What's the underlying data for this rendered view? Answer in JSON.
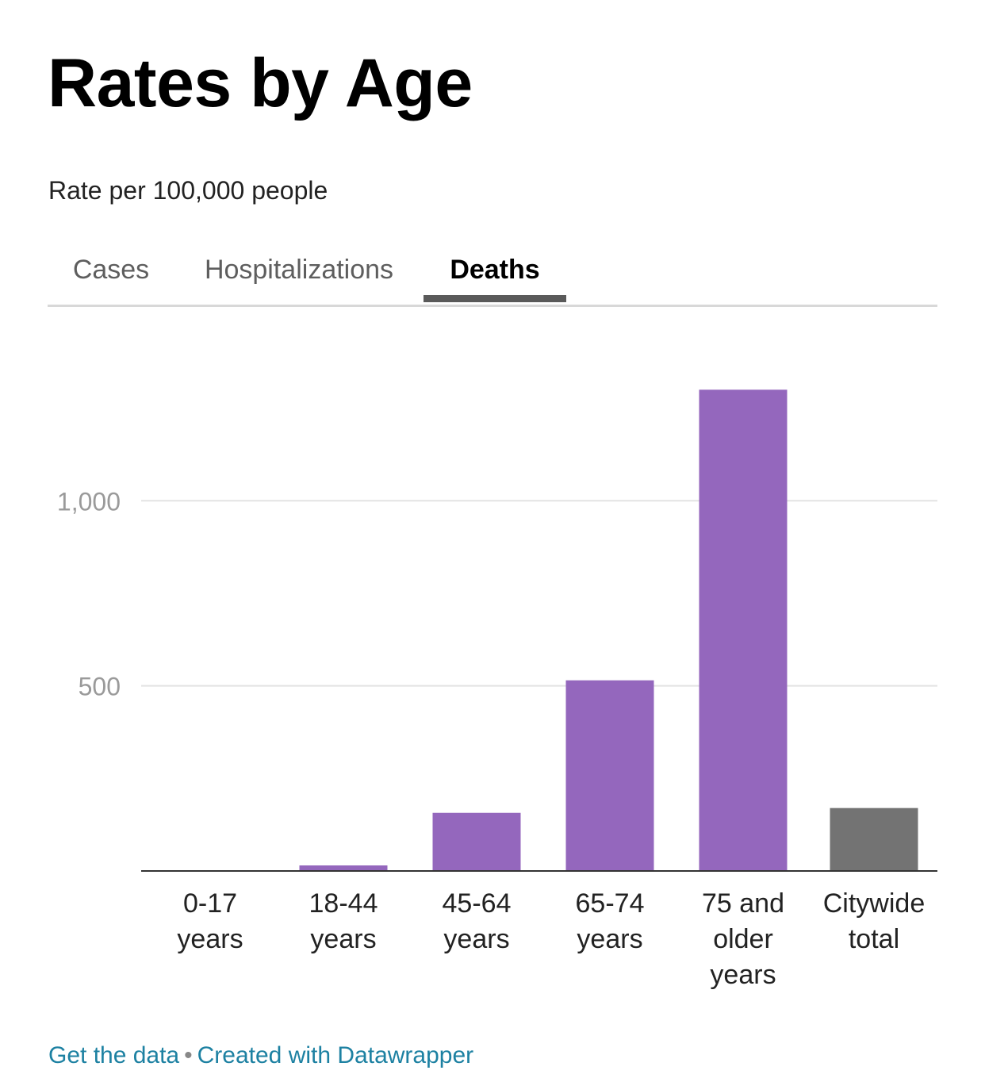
{
  "header": {
    "title": "Rates by Age",
    "subtitle": "Rate per 100,000 people"
  },
  "tabs": [
    {
      "label": "Cases",
      "active": false
    },
    {
      "label": "Hospitalizations",
      "active": false
    },
    {
      "label": "Deaths",
      "active": true
    }
  ],
  "chart_data": {
    "type": "bar",
    "title": "Rates by Age",
    "subtitle": "Rate per 100,000 people",
    "categories": [
      [
        "0-17",
        "years"
      ],
      [
        "18-44",
        "years"
      ],
      [
        "45-64",
        "years"
      ],
      [
        "65-74",
        "years"
      ],
      [
        "75 and",
        "older",
        "years"
      ],
      [
        "Citywide",
        "total"
      ]
    ],
    "values": [
      1,
      15,
      157,
      515,
      1300,
      170
    ],
    "bar_colors": [
      "#9467bd",
      "#9467bd",
      "#9467bd",
      "#9467bd",
      "#9467bd",
      "#737373"
    ],
    "ylim": [
      0,
      1400
    ],
    "yticks": [
      500,
      1000
    ],
    "ytick_labels": [
      "500",
      "1,000"
    ],
    "grid": true,
    "xlabel": "",
    "ylabel": ""
  },
  "footer": {
    "get_data_label": "Get the data",
    "separator": "•",
    "created_label": "Created with Datawrapper"
  },
  "colors": {
    "bar": "#9467bd",
    "total_bar": "#737373",
    "link": "#1d81a2"
  }
}
